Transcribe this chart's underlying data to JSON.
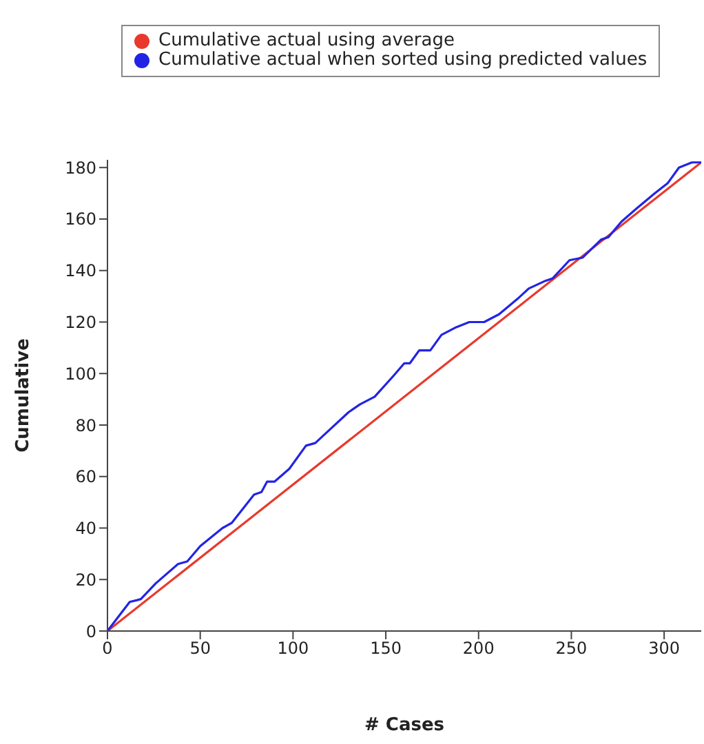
{
  "chart_data": {
    "type": "line",
    "xlabel": "# Cases",
    "ylabel": "Cumulative",
    "xlim": [
      0,
      320
    ],
    "ylim": [
      0,
      183
    ],
    "xticks": [
      0,
      50,
      100,
      150,
      200,
      250,
      300
    ],
    "yticks": [
      0,
      20,
      40,
      60,
      80,
      100,
      120,
      140,
      160,
      180
    ],
    "grid": false,
    "legend": "top",
    "marker": "none",
    "line_style": "solid",
    "series": [
      {
        "name": "Cumulative actual using average",
        "color": "#e8392c",
        "x": [
          0,
          320
        ],
        "values": [
          0,
          182
        ]
      },
      {
        "name": "Cumulative actual when sorted using predicted values",
        "color": "#2323e6",
        "x": [
          0,
          12,
          16,
          18,
          26,
          38,
          43,
          50,
          62,
          67,
          79,
          83,
          86,
          90,
          98,
          107,
          112,
          118,
          130,
          136,
          144,
          154,
          160,
          163,
          168,
          174,
          180,
          188,
          195,
          203,
          211,
          221,
          227,
          236,
          240,
          249,
          256,
          266,
          270,
          277,
          285,
          295,
          302,
          308,
          315,
          320
        ],
        "values": [
          0,
          11.3,
          12,
          12.4,
          18.5,
          26,
          27,
          33,
          40,
          42,
          53,
          54,
          58,
          58,
          63,
          72,
          73,
          77,
          85,
          88,
          91,
          99,
          104,
          104,
          109,
          109,
          115,
          118,
          120,
          120,
          123,
          129,
          133,
          136,
          137,
          144,
          145,
          152,
          153,
          159,
          164,
          170,
          174,
          180,
          182,
          182
        ]
      }
    ]
  }
}
